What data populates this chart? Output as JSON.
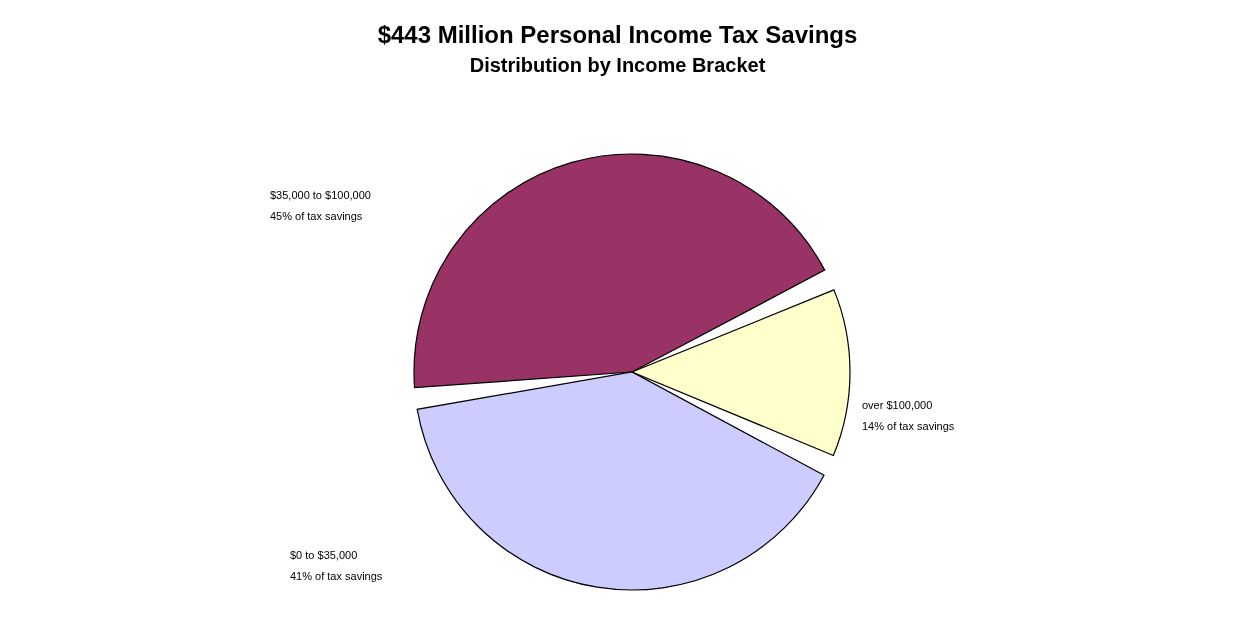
{
  "chart_data": {
    "type": "pie",
    "title": "$443 Million Personal Income Tax Savings",
    "subtitle": "Distribution by Income Bracket",
    "categories": [
      "$35,000 to $100,000",
      "over $100,000",
      "$0 to $35,000"
    ],
    "values": [
      45,
      14,
      41
    ],
    "colors": [
      "#993366",
      "#ffffcc",
      "#ccccff"
    ],
    "value_labels": [
      "45% of tax savings",
      "14% of tax savings",
      "41% of tax savings"
    ]
  }
}
